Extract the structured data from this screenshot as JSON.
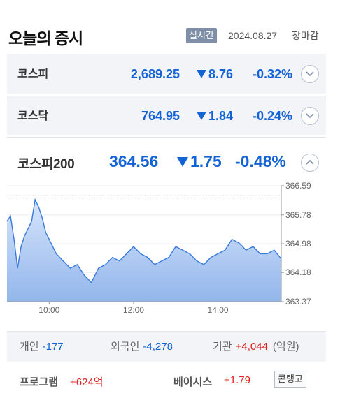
{
  "header": {
    "title": "오늘의 증시",
    "badge": "실시간",
    "date": "2024.08.27",
    "status": "장마감"
  },
  "indices": [
    {
      "name": "코스피",
      "value": "2,689.25",
      "change": "8.76",
      "percent": "-0.32%",
      "direction": "down"
    },
    {
      "name": "코스닥",
      "value": "764.95",
      "change": "1.84",
      "percent": "-0.24%",
      "direction": "down"
    }
  ],
  "main_index": {
    "name": "코스피200",
    "value": "364.56",
    "change": "1.75",
    "percent": "-0.48%",
    "direction": "down"
  },
  "chart_data": {
    "type": "area",
    "y_ticks": [
      "366.59",
      "365.78",
      "364.98",
      "364.18",
      "363.37"
    ],
    "x_ticks": [
      "10:00",
      "12:00",
      "14:00"
    ],
    "ylim": [
      363.37,
      366.59
    ],
    "x_range": [
      "09:00",
      "15:30"
    ],
    "previous_close": 366.31,
    "color": "#3a7ad9",
    "x": [
      "09:00",
      "09:05",
      "09:10",
      "09:15",
      "09:20",
      "09:25",
      "09:30",
      "09:35",
      "09:40",
      "09:45",
      "09:50",
      "09:55",
      "10:00",
      "10:10",
      "10:20",
      "10:30",
      "10:40",
      "10:50",
      "11:00",
      "11:10",
      "11:20",
      "11:30",
      "11:40",
      "11:50",
      "12:00",
      "12:10",
      "12:20",
      "12:30",
      "12:40",
      "12:50",
      "13:00",
      "13:10",
      "13:20",
      "13:30",
      "13:40",
      "13:50",
      "14:00",
      "14:10",
      "14:20",
      "14:30",
      "14:40",
      "14:50",
      "15:00",
      "15:10",
      "15:20",
      "15:30"
    ],
    "values": [
      365.6,
      365.75,
      365.1,
      364.3,
      364.9,
      365.2,
      365.4,
      365.6,
      366.2,
      366.0,
      365.7,
      365.3,
      365.1,
      364.7,
      364.5,
      364.3,
      364.4,
      364.1,
      363.9,
      364.3,
      364.4,
      364.6,
      364.5,
      364.7,
      364.9,
      364.7,
      364.6,
      364.4,
      364.5,
      364.6,
      364.9,
      364.8,
      364.7,
      364.5,
      364.4,
      364.6,
      364.7,
      364.8,
      365.1,
      365.0,
      364.8,
      364.9,
      364.7,
      364.7,
      364.8,
      364.56
    ]
  },
  "investors": {
    "individual_label": "개인",
    "individual_value": "-177",
    "foreign_label": "외국인",
    "foreign_value": "-4,278",
    "institution_label": "기관",
    "institution_value": "+4,044",
    "unit": "(억원)"
  },
  "bottom": {
    "program_label": "프로그램",
    "program_value": "+624억",
    "basis_label": "베이시스",
    "basis_value": "+1.79",
    "contango_label": "콘탱고"
  },
  "colors": {
    "down": "#1463d6",
    "up": "#e02020",
    "badge": "#7f8fa8"
  },
  "icons": {
    "expand": "chevron-down-icon",
    "collapse": "chevron-up-icon"
  }
}
